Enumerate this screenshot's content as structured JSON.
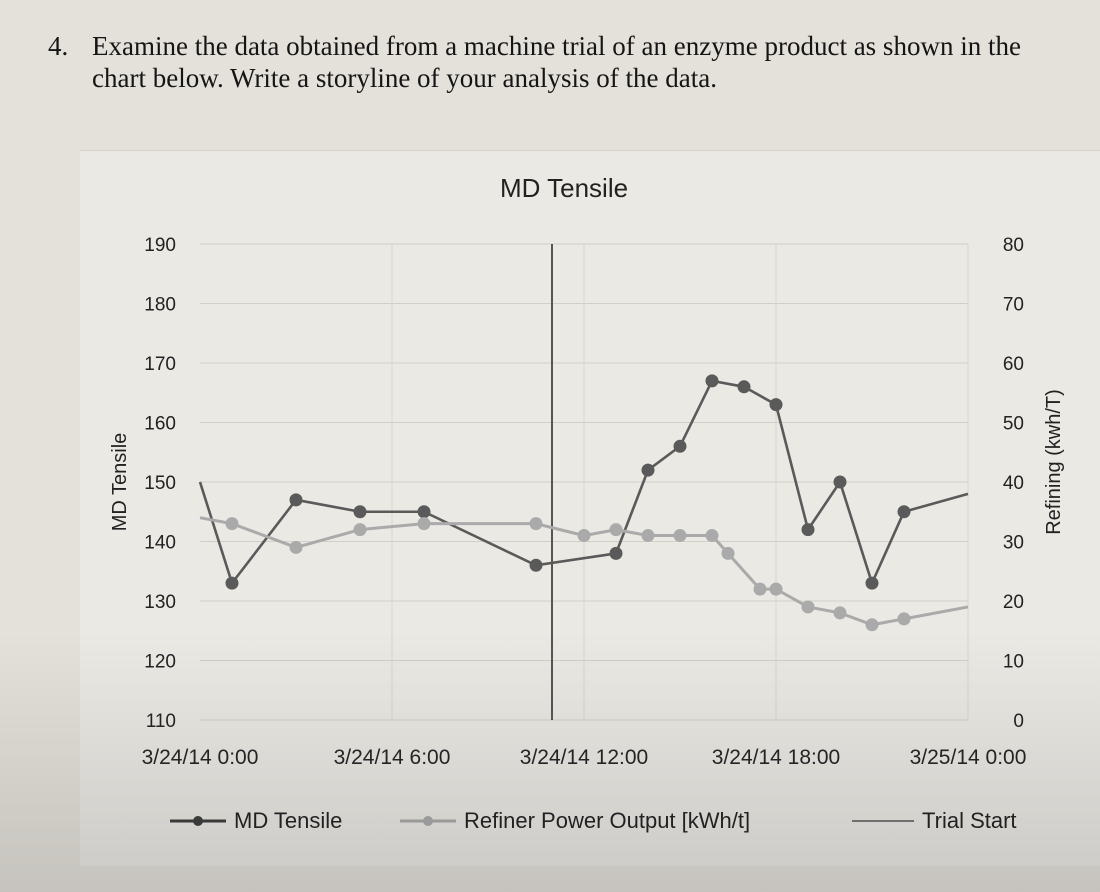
{
  "question": {
    "number": "4.",
    "text": "Examine the data obtained from a machine trial of an enzyme product as shown in the chart below. Write a storyline of your analysis of the data."
  },
  "chart_data": {
    "type": "line",
    "title": "MD Tensile",
    "ylabel_left": "MD Tensile",
    "ylabel_right": "Refining (kwh/T)",
    "ylim_left": [
      110,
      190
    ],
    "ylim_right": [
      0,
      80
    ],
    "yticks_left": [
      110,
      120,
      130,
      140,
      150,
      160,
      170,
      180,
      190
    ],
    "yticks_right": [
      0,
      10,
      20,
      30,
      40,
      50,
      60,
      70,
      80
    ],
    "xlim": [
      "3/24/14 0:00",
      "3/25/14 0:00"
    ],
    "xticks": [
      "3/24/14 0:00",
      "3/24/14 6:00",
      "3/24/14 12:00",
      "3/24/14 18:00",
      "3/25/14 0:00"
    ],
    "grid": true,
    "legend_position": "bottom",
    "series": [
      {
        "name": "MD Tensile",
        "axis": "left",
        "color": "#5a5a5a",
        "x": [
          "3/24/14 0:00",
          "3/24/14 1:00",
          "3/24/14 3:00",
          "3/24/14 5:00",
          "3/24/14 7:00",
          "3/24/14 10:30",
          "3/24/14 13:00",
          "3/24/14 14:00",
          "3/24/14 15:00",
          "3/24/14 16:00",
          "3/24/14 17:00",
          "3/24/14 18:00",
          "3/24/14 19:00",
          "3/24/14 20:00",
          "3/24/14 21:00",
          "3/24/14 22:00",
          "3/25/14 0:00"
        ],
        "values": [
          150,
          133,
          147,
          145,
          145,
          136,
          138,
          152,
          156,
          167,
          166,
          163,
          142,
          150,
          133,
          145,
          148
        ]
      },
      {
        "name": "Refiner Power Output [kWh/t]",
        "axis": "right",
        "color": "#aaaaaa",
        "x": [
          "3/24/14 0:00",
          "3/24/14 1:00",
          "3/24/14 3:00",
          "3/24/14 5:00",
          "3/24/14 7:00",
          "3/24/14 10:30",
          "3/24/14 12:00",
          "3/24/14 13:00",
          "3/24/14 14:00",
          "3/24/14 15:00",
          "3/24/14 16:00",
          "3/24/14 16:30",
          "3/24/14 17:30",
          "3/24/14 18:00",
          "3/24/14 19:00",
          "3/24/14 20:00",
          "3/24/14 21:00",
          "3/24/14 22:00",
          "3/25/14 0:00"
        ],
        "values": [
          34,
          33,
          29,
          32,
          33,
          33,
          31,
          32,
          31,
          31,
          31,
          28,
          22,
          22,
          19,
          18,
          16,
          17,
          19
        ]
      }
    ],
    "annotations": [
      {
        "name": "Trial Start",
        "type": "vline",
        "x": "3/24/14 11:00",
        "color": "#555555"
      }
    ]
  },
  "legend": {
    "md_tensile": "MD Tensile",
    "refiner": "Refiner Power Output [kWh/t]",
    "trial_start": "Trial Start"
  }
}
